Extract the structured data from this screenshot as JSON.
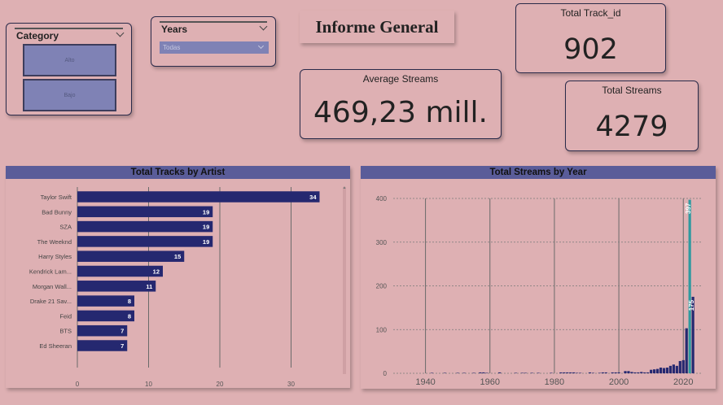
{
  "category_slicer": {
    "title": "Category",
    "options": [
      "Alto",
      "Bajo"
    ]
  },
  "years_slicer": {
    "title": "Years",
    "selected": "Todas"
  },
  "report_title": "Informe General",
  "cards": {
    "total_track": {
      "label": "Total Track_id",
      "value": "902"
    },
    "avg_streams": {
      "label": "Average Streams",
      "value": "469,23 mill."
    },
    "total_streams": {
      "label": "Total Streams",
      "value": "4279"
    }
  },
  "colors": {
    "background": "#deb0b3",
    "header": "#5a5c99",
    "bar": "#252870",
    "bar_highlight": "#2f9aa0",
    "tile": "#7f82b5"
  },
  "chart_data": [
    {
      "type": "bar",
      "orientation": "horizontal",
      "title": "Total Tracks by Artist",
      "categories": [
        "Taylor Swift",
        "Bad Bunny",
        "SZA",
        "The Weeknd",
        "Harry Styles",
        "Kendrick Lam...",
        "Morgan Wall...",
        "Drake 21 Sav...",
        "Feid",
        "BTS",
        "Ed Sheeran"
      ],
      "values": [
        34,
        19,
        19,
        19,
        15,
        12,
        11,
        8,
        8,
        7,
        7
      ],
      "xlim": [
        0,
        36
      ],
      "xticks": [
        "0",
        "10",
        "20",
        "30"
      ],
      "grid": true
    },
    {
      "type": "bar",
      "title": "Total Streams by Year",
      "x": [
        1942,
        1946,
        1950,
        1952,
        1955,
        1957,
        1958,
        1959,
        1963,
        1968,
        1970,
        1971,
        1973,
        1975,
        1979,
        1982,
        1983,
        1984,
        1985,
        1986,
        1987,
        1988,
        1991,
        1992,
        1994,
        1995,
        1996,
        1998,
        1999,
        2000,
        2002,
        2003,
        2004,
        2005,
        2006,
        2007,
        2008,
        2009,
        2010,
        2011,
        2012,
        2013,
        2014,
        2015,
        2016,
        2017,
        2018,
        2019,
        2020,
        2021,
        2022,
        2023
      ],
      "values": [
        1,
        1,
        1,
        1,
        1,
        2,
        2,
        1,
        2,
        1,
        1,
        1,
        1,
        1,
        1,
        2,
        2,
        2,
        2,
        2,
        1,
        1,
        2,
        1,
        1,
        2,
        2,
        2,
        2,
        2,
        5,
        5,
        3,
        2,
        2,
        3,
        2,
        2,
        8,
        9,
        10,
        13,
        12,
        13,
        17,
        20,
        17,
        28,
        30,
        103,
        397,
        175
      ],
      "data_labels": [
        {
          "x": 2022,
          "label": "397"
        },
        {
          "x": 2023,
          "label": "175"
        }
      ],
      "highlight_x": 2022,
      "xlim": [
        1930,
        2026
      ],
      "ylim": [
        0,
        400
      ],
      "yticks": [
        "0",
        "100",
        "200",
        "300",
        "400"
      ],
      "xticks": [
        "1940",
        "1960",
        "1980",
        "2000",
        "2020"
      ],
      "grid": true
    }
  ]
}
